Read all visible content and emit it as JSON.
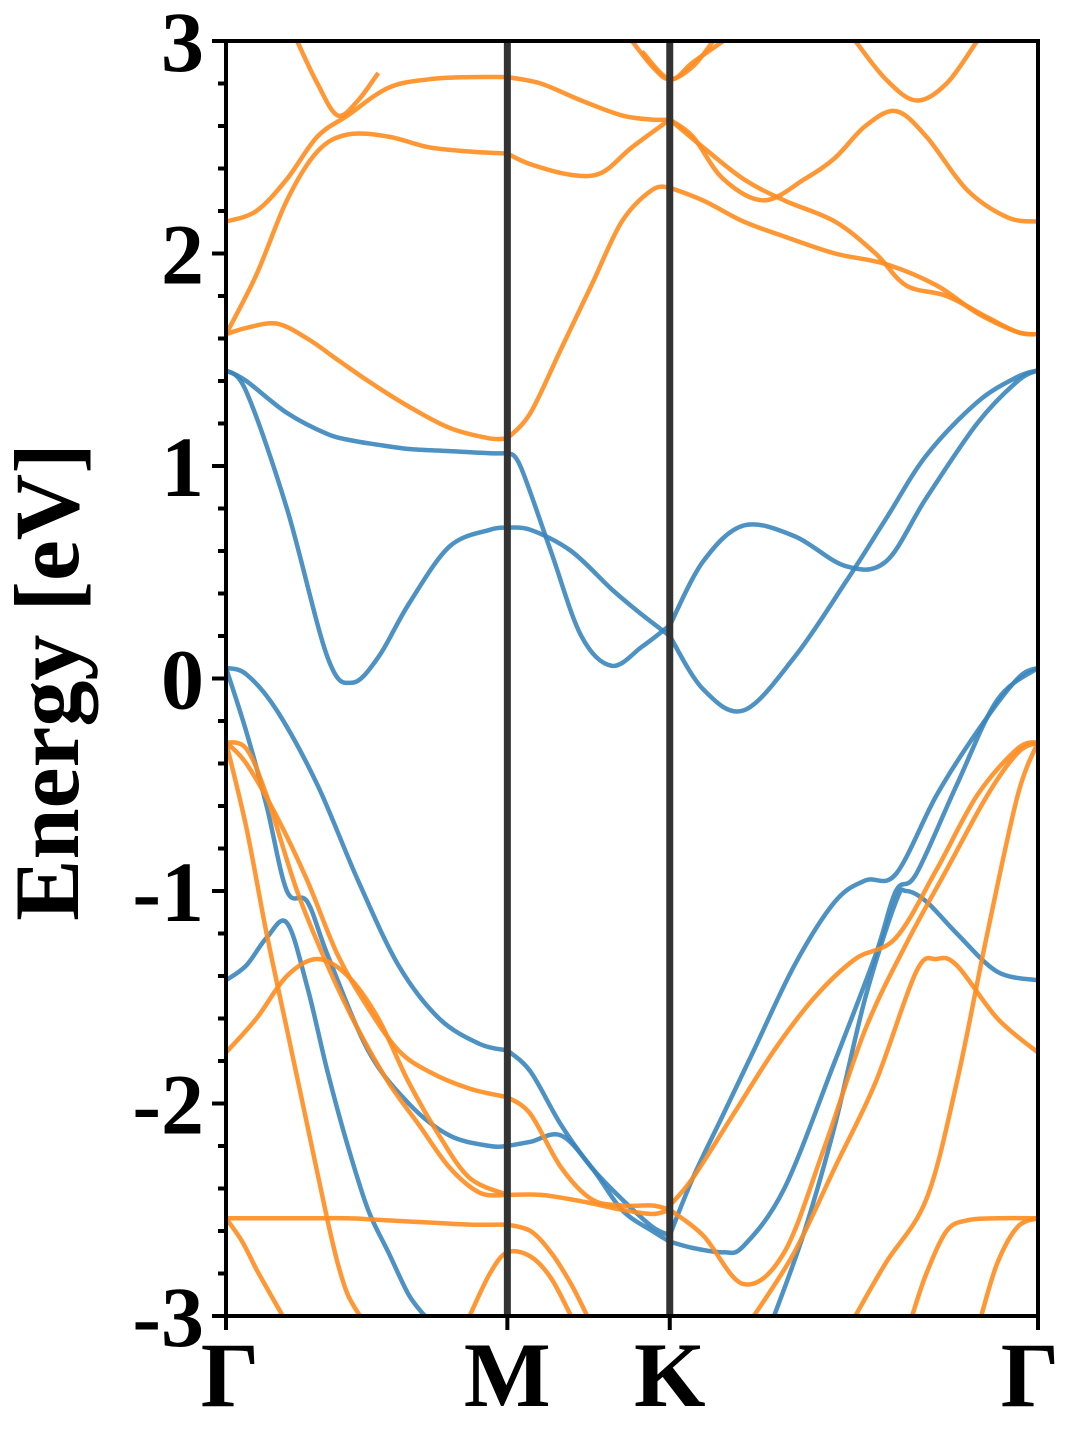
{
  "chart_data": {
    "type": "line",
    "title": "",
    "xlabel": "",
    "ylabel": "Energy [eV]",
    "ylim": [
      -3,
      3
    ],
    "y_ticks": [
      -3,
      -2,
      -1,
      0,
      1,
      2,
      3
    ],
    "y_tick_labels": [
      "-3",
      "-2",
      "-1",
      "0",
      "1",
      "2",
      "3"
    ],
    "y_minor_step": 0.2,
    "grid": false,
    "legend": "none",
    "x_ticks": [
      0,
      1.386,
      2.186,
      4.0
    ],
    "x_tick_labels": [
      "Γ",
      "M",
      "K",
      "Γ"
    ],
    "high_symmetry_lines": [
      1.386,
      2.186
    ],
    "xlim": [
      0,
      4.0
    ],
    "colors": {
      "blue": "#3a86bd",
      "orange": "#ff8c1f",
      "vline": "#333333"
    },
    "series": [
      {
        "color": "blue",
        "x": [
          0,
          0.1,
          0.3,
          0.5,
          0.62,
          0.75,
          0.9,
          1.1,
          1.3,
          1.386
        ],
        "y": [
          1.45,
          1.4,
          1.25,
          1.15,
          1.12,
          1.1,
          1.08,
          1.07,
          1.06,
          1.06
        ]
      },
      {
        "color": "blue",
        "x": [
          0,
          0.1,
          0.3,
          0.5,
          0.62,
          0.75,
          0.9,
          1.1,
          1.3,
          1.386
        ],
        "y": [
          1.45,
          1.35,
          0.8,
          0.1,
          -0.02,
          0.1,
          0.35,
          0.62,
          0.7,
          0.71
        ]
      },
      {
        "color": "blue",
        "x": [
          1.386,
          1.45,
          1.6,
          1.75,
          1.9,
          2.05,
          2.186
        ],
        "y": [
          1.06,
          1.0,
          0.6,
          0.2,
          0.06,
          0.15,
          0.25
        ]
      },
      {
        "color": "blue",
        "x": [
          1.386,
          1.5,
          1.7,
          1.9,
          2.05,
          2.186
        ],
        "y": [
          0.71,
          0.7,
          0.6,
          0.42,
          0.3,
          0.2
        ]
      },
      {
        "color": "blue",
        "x": [
          2.186,
          2.35,
          2.55,
          2.8,
          3.05,
          3.25,
          3.45,
          3.7,
          3.9,
          4.0
        ],
        "y": [
          0.2,
          -0.05,
          -0.15,
          0.1,
          0.45,
          0.75,
          1.05,
          1.3,
          1.42,
          1.45
        ]
      },
      {
        "color": "blue",
        "x": [
          2.186,
          2.35,
          2.55,
          2.8,
          3.05,
          3.25,
          3.45,
          3.7,
          3.9,
          4.0
        ],
        "y": [
          0.25,
          0.55,
          0.72,
          0.67,
          0.53,
          0.55,
          0.85,
          1.2,
          1.4,
          1.45
        ]
      },
      {
        "color": "blue",
        "x": [
          0,
          0.1,
          0.25,
          0.45,
          0.65,
          0.85,
          1.05,
          1.25,
          1.386
        ],
        "y": [
          0.05,
          0.02,
          -0.15,
          -0.5,
          -0.95,
          -1.35,
          -1.6,
          -1.72,
          -1.75
        ]
      },
      {
        "color": "blue",
        "x": [
          0,
          0.1,
          0.2,
          0.3,
          0.4,
          0.5,
          0.7,
          0.9,
          1.1,
          1.3,
          1.386
        ],
        "y": [
          0.05,
          -0.25,
          -0.6,
          -1.0,
          -1.05,
          -1.3,
          -1.75,
          -2.0,
          -2.15,
          -2.2,
          -2.2
        ]
      },
      {
        "color": "blue",
        "x": [
          0,
          0.1,
          0.2,
          0.3,
          0.4,
          0.5,
          0.6,
          0.7,
          0.8,
          0.9,
          0.98
        ],
        "y": [
          -1.42,
          -1.35,
          -1.22,
          -1.15,
          -1.45,
          -1.85,
          -2.2,
          -2.5,
          -2.7,
          -2.9,
          -3.0
        ]
      },
      {
        "color": "blue",
        "x": [
          1.386,
          1.5,
          1.65,
          1.8,
          1.95,
          2.1,
          2.186
        ],
        "y": [
          -1.75,
          -1.85,
          -2.1,
          -2.3,
          -2.45,
          -2.58,
          -2.62
        ]
      },
      {
        "color": "blue",
        "x": [
          1.386,
          1.5,
          1.65,
          1.8,
          1.95,
          2.1,
          2.186
        ],
        "y": [
          -2.2,
          -2.18,
          -2.15,
          -2.3,
          -2.5,
          -2.6,
          -2.65
        ]
      },
      {
        "color": "blue",
        "x": [
          2.186,
          2.3,
          2.45,
          2.55,
          2.75,
          3.0,
          3.2,
          3.3,
          3.4,
          3.6,
          3.8,
          4.0
        ],
        "y": [
          -2.65,
          -2.68,
          -2.7,
          -2.67,
          -2.4,
          -1.8,
          -1.3,
          -1.0,
          -0.92,
          -0.5,
          -0.1,
          0.05
        ]
      },
      {
        "color": "blue",
        "x": [
          2.186,
          2.3,
          2.45,
          2.6,
          2.8,
          3.0,
          3.15,
          3.3,
          3.5,
          3.7,
          3.9,
          4.0
        ],
        "y": [
          -2.62,
          -2.35,
          -2.05,
          -1.75,
          -1.35,
          -1.05,
          -0.95,
          -0.92,
          -0.55,
          -0.25,
          0.0,
          0.05
        ]
      },
      {
        "color": "blue",
        "x": [
          2.7,
          2.85,
          3.0,
          3.15,
          3.3,
          3.35,
          3.45,
          3.6,
          3.8,
          4.0
        ],
        "y": [
          -3.0,
          -2.6,
          -2.1,
          -1.5,
          -1.05,
          -1.0,
          -1.05,
          -1.2,
          -1.38,
          -1.42
        ]
      },
      {
        "color": "orange",
        "x": [
          0,
          0.1,
          0.25,
          0.4,
          0.55,
          0.7,
          0.9,
          1.1,
          1.3,
          1.386
        ],
        "y": [
          1.62,
          1.65,
          1.67,
          1.6,
          1.5,
          1.4,
          1.28,
          1.18,
          1.13,
          1.13
        ]
      },
      {
        "color": "orange",
        "x": [
          1.386,
          1.5,
          1.65,
          1.8,
          1.95,
          2.1,
          2.186
        ],
        "y": [
          1.13,
          1.25,
          1.55,
          1.85,
          2.15,
          2.3,
          2.31
        ]
      },
      {
        "color": "orange",
        "x": [
          0,
          0.15,
          0.3,
          0.45,
          0.6,
          0.8,
          1.0,
          1.2,
          1.386
        ],
        "y": [
          1.62,
          1.9,
          2.25,
          2.48,
          2.56,
          2.55,
          2.5,
          2.48,
          2.47
        ]
      },
      {
        "color": "orange",
        "x": [
          0,
          0.15,
          0.3,
          0.45,
          0.6,
          0.8,
          1.0,
          1.2,
          1.386
        ],
        "y": [
          2.15,
          2.2,
          2.35,
          2.55,
          2.65,
          2.78,
          2.82,
          2.83,
          2.83
        ]
      },
      {
        "color": "orange",
        "x": [
          0.35,
          0.45,
          0.55,
          0.65,
          0.75
        ],
        "y": [
          3.0,
          2.8,
          2.65,
          2.72,
          2.85
        ]
      },
      {
        "color": "orange",
        "x": [
          1.386,
          1.5,
          1.7,
          1.85,
          2.0,
          2.186
        ],
        "y": [
          2.47,
          2.42,
          2.37,
          2.38,
          2.5,
          2.63
        ]
      },
      {
        "color": "orange",
        "x": [
          1.386,
          1.55,
          1.75,
          1.95,
          2.1,
          2.186
        ],
        "y": [
          2.83,
          2.8,
          2.72,
          2.65,
          2.63,
          2.63
        ]
      },
      {
        "color": "orange",
        "x": [
          2.186,
          2.35,
          2.55,
          2.75,
          3.0,
          3.25,
          3.5,
          3.7,
          3.9,
          4.0
        ],
        "y": [
          2.31,
          2.25,
          2.15,
          2.08,
          2.0,
          1.95,
          1.85,
          1.72,
          1.63,
          1.62
        ]
      },
      {
        "color": "orange",
        "x": [
          2.186,
          2.35,
          2.55,
          2.75,
          3.0,
          3.2,
          3.35,
          3.55,
          3.75,
          3.9,
          4.0
        ],
        "y": [
          2.63,
          2.5,
          2.35,
          2.25,
          2.15,
          2.0,
          1.85,
          1.8,
          1.7,
          1.63,
          1.62
        ]
      },
      {
        "color": "orange",
        "x": [
          2.186,
          2.3,
          2.45,
          2.65,
          2.85,
          3.0,
          3.15,
          3.3,
          3.45,
          3.65,
          3.85,
          4.0
        ],
        "y": [
          2.63,
          2.55,
          2.35,
          2.25,
          2.35,
          2.45,
          2.6,
          2.67,
          2.55,
          2.3,
          2.17,
          2.15
        ]
      },
      {
        "color": "orange",
        "x": [
          2.0,
          2.1,
          2.186,
          2.3,
          2.4
        ],
        "y": [
          3.0,
          2.88,
          2.82,
          2.88,
          3.0
        ]
      },
      {
        "color": "orange",
        "x": [
          2.05,
          2.186,
          2.3,
          2.45
        ],
        "y": [
          2.95,
          2.82,
          2.9,
          3.0
        ]
      },
      {
        "color": "orange",
        "x": [
          3.1,
          3.25,
          3.4,
          3.55,
          3.7
        ],
        "y": [
          3.0,
          2.82,
          2.72,
          2.8,
          3.0
        ]
      },
      {
        "color": "orange",
        "x": [
          0,
          0.1,
          0.25,
          0.4,
          0.55,
          0.7,
          0.85,
          1.0,
          1.2,
          1.386
        ],
        "y": [
          -0.3,
          -0.4,
          -0.65,
          -0.95,
          -1.3,
          -1.55,
          -1.75,
          -1.85,
          -1.93,
          -1.97
        ]
      },
      {
        "color": "orange",
        "x": [
          0,
          0.1,
          0.2,
          0.35,
          0.5,
          0.65,
          0.8,
          0.95,
          1.1,
          1.25,
          1.386
        ],
        "y": [
          -0.3,
          -0.33,
          -0.55,
          -1.0,
          -1.35,
          -1.65,
          -1.9,
          -2.1,
          -2.3,
          -2.42,
          -2.43
        ]
      },
      {
        "color": "orange",
        "x": [
          0,
          0.1,
          0.2,
          0.3,
          0.4,
          0.5,
          0.55,
          0.6,
          0.66
        ],
        "y": [
          -0.3,
          -0.7,
          -1.2,
          -1.65,
          -2.1,
          -2.55,
          -2.75,
          -2.9,
          -3.0
        ]
      },
      {
        "color": "orange",
        "x": [
          0,
          0.15,
          0.3,
          0.45,
          0.6,
          0.75,
          0.9,
          1.05,
          1.2,
          1.386
        ],
        "y": [
          -1.76,
          -1.6,
          -1.4,
          -1.32,
          -1.4,
          -1.6,
          -1.9,
          -2.15,
          -2.35,
          -2.43
        ]
      },
      {
        "color": "orange",
        "x": [
          0,
          0.2,
          0.4,
          0.6,
          0.8,
          1.0,
          1.2,
          1.386
        ],
        "y": [
          -2.54,
          -2.54,
          -2.54,
          -2.54,
          -2.55,
          -2.56,
          -2.57,
          -2.57
        ]
      },
      {
        "color": "orange",
        "x": [
          0,
          0.08,
          0.15,
          0.22,
          0.28
        ],
        "y": [
          -2.54,
          -2.65,
          -2.78,
          -2.9,
          -3.0
        ]
      },
      {
        "color": "orange",
        "x": [
          1.386,
          1.5,
          1.65,
          1.8,
          1.95,
          2.1,
          2.186
        ],
        "y": [
          -1.97,
          -2.05,
          -2.3,
          -2.45,
          -2.48,
          -2.48,
          -2.5
        ]
      },
      {
        "color": "orange",
        "x": [
          1.386,
          1.55,
          1.75,
          1.95,
          2.1,
          2.186
        ],
        "y": [
          -2.43,
          -2.43,
          -2.46,
          -2.5,
          -2.52,
          -2.5
        ]
      },
      {
        "color": "orange",
        "x": [
          1.386,
          1.5,
          1.6,
          1.7,
          1.78
        ],
        "y": [
          -2.57,
          -2.6,
          -2.7,
          -2.85,
          -3.0
        ]
      },
      {
        "color": "orange",
        "x": [
          1.2,
          1.3,
          1.386,
          1.5,
          1.6,
          1.7
        ],
        "y": [
          -3.0,
          -2.8,
          -2.7,
          -2.72,
          -2.82,
          -3.0
        ]
      },
      {
        "color": "orange",
        "x": [
          2.186,
          2.3,
          2.5,
          2.7,
          2.9,
          3.1,
          3.3,
          3.5,
          3.7,
          3.9,
          4.0
        ],
        "y": [
          -2.48,
          -2.35,
          -2.05,
          -1.75,
          -1.5,
          -1.32,
          -1.22,
          -0.9,
          -0.55,
          -0.33,
          -0.3
        ]
      },
      {
        "color": "orange",
        "x": [
          2.186,
          2.35,
          2.55,
          2.75,
          2.95,
          3.15,
          3.35,
          3.55,
          3.75,
          3.9,
          4.0
        ],
        "y": [
          -2.5,
          -2.62,
          -2.85,
          -2.7,
          -2.2,
          -1.65,
          -1.25,
          -0.9,
          -0.55,
          -0.35,
          -0.3
        ]
      },
      {
        "color": "orange",
        "x": [
          2.6,
          2.8,
          3.0,
          3.2,
          3.4,
          3.5,
          3.6,
          3.8,
          4.0
        ],
        "y": [
          -3.0,
          -2.7,
          -2.3,
          -1.9,
          -1.38,
          -1.32,
          -1.35,
          -1.6,
          -1.76
        ]
      },
      {
        "color": "orange",
        "x": [
          3.1,
          3.25,
          3.45,
          3.6,
          3.75,
          3.9,
          4.0
        ],
        "y": [
          -3.0,
          -2.75,
          -2.45,
          -1.9,
          -1.2,
          -0.55,
          -0.3
        ]
      },
      {
        "color": "orange",
        "x": [
          3.38,
          3.45,
          3.55,
          3.65,
          3.8,
          4.0
        ],
        "y": [
          -3.0,
          -2.8,
          -2.6,
          -2.55,
          -2.54,
          -2.54
        ]
      },
      {
        "color": "orange",
        "x": [
          3.72,
          3.8,
          3.9,
          4.0
        ],
        "y": [
          -3.0,
          -2.75,
          -2.58,
          -2.54
        ]
      }
    ]
  }
}
